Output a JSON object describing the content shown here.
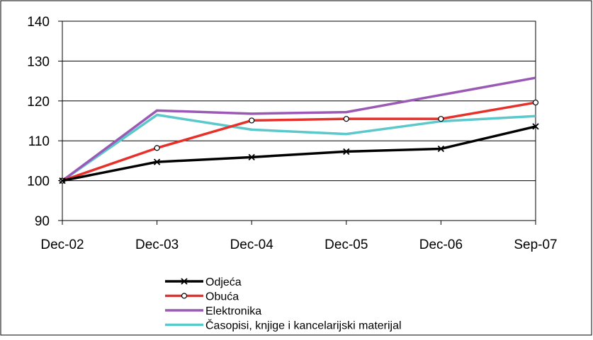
{
  "chart_data": {
    "type": "line",
    "title": "",
    "xlabel": "",
    "ylabel": "",
    "categories": [
      "Dec-02",
      "Dec-03",
      "Dec-04",
      "Dec-05",
      "Dec-06",
      "Sep-07"
    ],
    "ylim": [
      90,
      140
    ],
    "yticks": [
      "90",
      "100",
      "110",
      "120",
      "130",
      "140"
    ],
    "grid": "horizontal",
    "legend_position": "bottom",
    "series": [
      {
        "name": "Odjeća",
        "color": "#000000",
        "marker": "x",
        "values": [
          100,
          104.7,
          105.9,
          107.3,
          108.0,
          113.6
        ]
      },
      {
        "name": "Obuća",
        "color": "#e8302a",
        "marker": "circle",
        "values": [
          100,
          108.2,
          115.1,
          115.5,
          115.5,
          119.6
        ]
      },
      {
        "name": "Elektronika",
        "color": "#9b59b6",
        "marker": "none",
        "values": [
          100,
          117.6,
          116.8,
          117.2,
          121.5,
          125.8
        ]
      },
      {
        "name": "Časopisi, knjige i kancelarijski materijal",
        "color": "#5bc8cc",
        "marker": "none",
        "values": [
          100,
          116.5,
          112.8,
          111.7,
          114.9,
          116.2
        ]
      }
    ]
  }
}
